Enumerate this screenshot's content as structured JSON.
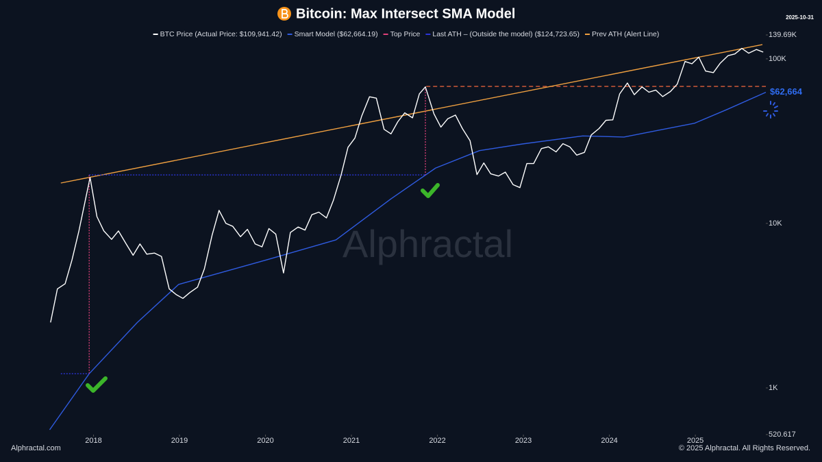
{
  "chart_data": {
    "type": "line",
    "title": "Bitcoin: Max Intersect SMA Model",
    "date": "2025-10-31",
    "watermark": "Alphractal",
    "footer_left": "Alphractal.com",
    "footer_right": "© 2025 Alphractal. All Rights Reserved.",
    "log_scale": true,
    "grid": false,
    "xlim": [
      2017.47,
      2025.82
    ],
    "xticks": [
      2018,
      2019,
      2020,
      2021,
      2022,
      2023,
      2024,
      2025
    ],
    "ylim": [
      520.617,
      139690
    ],
    "yticks": [
      520.617,
      {
        "value": 1000,
        "label": "1K"
      },
      {
        "value": 10000,
        "label": "10K"
      },
      {
        "value": 100000,
        "label": "100K"
      },
      {
        "value": 139690,
        "label": "139.69K"
      }
    ],
    "series": [
      {
        "name": "BTC Price (Actual Price: $109,941.42)",
        "color": "#ffffff",
        "style": "solid",
        "x": [
          2017.5,
          2017.58,
          2017.67,
          2017.75,
          2017.83,
          2017.96,
          2018.04,
          2018.12,
          2018.21,
          2018.29,
          2018.38,
          2018.46,
          2018.54,
          2018.62,
          2018.71,
          2018.79,
          2018.88,
          2018.96,
          2019.04,
          2019.12,
          2019.21,
          2019.29,
          2019.38,
          2019.46,
          2019.54,
          2019.62,
          2019.71,
          2019.79,
          2019.88,
          2019.96,
          2020.04,
          2020.12,
          2020.21,
          2020.29,
          2020.38,
          2020.46,
          2020.54,
          2020.62,
          2020.71,
          2020.79,
          2020.88,
          2020.96,
          2021.04,
          2021.12,
          2021.21,
          2021.29,
          2021.38,
          2021.46,
          2021.54,
          2021.62,
          2021.71,
          2021.79,
          2021.86,
          2021.96,
          2022.04,
          2022.12,
          2022.21,
          2022.29,
          2022.38,
          2022.46,
          2022.54,
          2022.62,
          2022.71,
          2022.79,
          2022.88,
          2022.96,
          2023.04,
          2023.12,
          2023.21,
          2023.29,
          2023.38,
          2023.46,
          2023.54,
          2023.62,
          2023.71,
          2023.79,
          2023.88,
          2023.96,
          2024.04,
          2024.12,
          2024.21,
          2024.29,
          2024.38,
          2024.46,
          2024.54,
          2024.62,
          2024.71,
          2024.79,
          2024.88,
          2024.96,
          2025.04,
          2025.12,
          2025.21,
          2025.29,
          2025.38,
          2025.46,
          2025.54,
          2025.62,
          2025.71,
          2025.79
        ],
        "values": [
          2500,
          4000,
          4300,
          6000,
          9000,
          19000,
          11000,
          9000,
          8000,
          9000,
          7500,
          6400,
          7500,
          6500,
          6600,
          6300,
          4000,
          3700,
          3500,
          3800,
          4100,
          5300,
          8500,
          12000,
          10000,
          9600,
          8300,
          9200,
          7500,
          7200,
          9300,
          8600,
          5000,
          8800,
          9500,
          9100,
          11300,
          11700,
          10800,
          13800,
          19700,
          29000,
          33000,
          45000,
          58800,
          57700,
          37300,
          35000,
          41500,
          47000,
          43800,
          61300,
          67500,
          46300,
          38500,
          43200,
          45500,
          37700,
          31800,
          19800,
          23300,
          20000,
          19400,
          20500,
          17200,
          16500,
          23100,
          23100,
          28500,
          29200,
          27200,
          30500,
          29200,
          26000,
          27000,
          34500,
          37700,
          42300,
          42600,
          61200,
          71300,
          60600,
          67500,
          62700,
          64600,
          59000,
          63300,
          70200,
          96400,
          93400,
          102400,
          84300,
          82500,
          94200,
          104600,
          107100,
          115700,
          108200,
          114000,
          109941.42
        ]
      },
      {
        "name": "Smart Model ($62,664.19)",
        "color": "#2f5be0",
        "style": "solid",
        "x": [
          2017.49,
          2017.95,
          2018.51,
          2018.99,
          2019.99,
          2020.82,
          2021.46,
          2021.98,
          2022.49,
          2022.99,
          2023.69,
          2024.17,
          2024.57,
          2024.99,
          2025.36,
          2025.82
        ],
        "values": [
          557,
          1220,
          2500,
          4260,
          5960,
          7940,
          14100,
          21700,
          27700,
          30400,
          34000,
          33500,
          36800,
          40600,
          49000,
          62664.19
        ]
      },
      {
        "name": "Top Price",
        "color": "#e0407a",
        "style": "dotted",
        "x": [
          2017.95,
          2017.95,
          null,
          2021.86,
          2021.86
        ],
        "values": [
          19700,
          1220,
          null,
          68000,
          19700
        ]
      },
      {
        "name": "Last ATH – (Outside the model) ($124,723.65)",
        "color": "#2b35d8",
        "style": "dotted",
        "x": [
          2017.62,
          2017.95,
          null,
          2017.95,
          2021.86
        ],
        "values": [
          1220,
          1220,
          null,
          19700,
          19700
        ]
      },
      {
        "name": "Prev ATH (Alert Line)",
        "color": "#f0a040",
        "style": "solid",
        "x": [
          2017.62,
          2025.78
        ],
        "values": [
          17600,
          122000
        ]
      }
    ],
    "alert_line": {
      "value": 68000,
      "xlim": [
        2021.87,
        2025.82
      ],
      "color": "#e0603a"
    },
    "end_label": {
      "value": 62664,
      "label": "$62,664",
      "color": "#2f6cf0"
    }
  }
}
